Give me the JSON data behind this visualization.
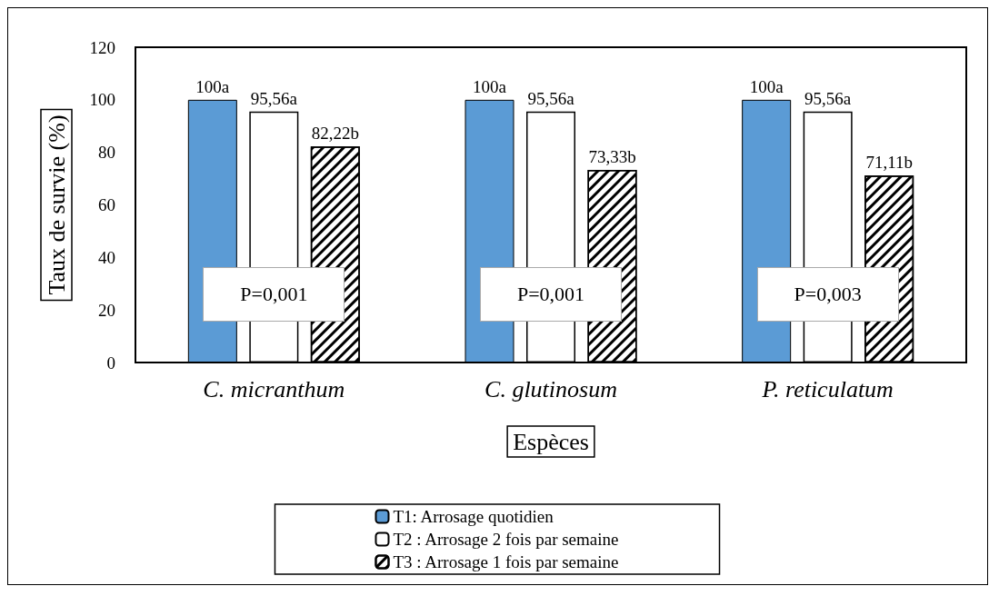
{
  "chart_data": {
    "type": "bar",
    "categories": [
      "C. micranthum",
      "C. glutinosum",
      "P. reticulatum"
    ],
    "series": [
      {
        "name": "T1: Arrosage quotidien",
        "color": "#5b9bd5",
        "values": [
          100,
          100,
          100
        ],
        "value_labels": [
          "100a",
          "100a",
          "100a"
        ]
      },
      {
        "name": "T2 : Arrosage 2 fois par semaine",
        "color": "#ffffff",
        "values": [
          95.56,
          95.56,
          95.56
        ],
        "value_labels": [
          "95,56a",
          "95,56a",
          "95,56a"
        ]
      },
      {
        "name": "T3 : Arrosage 1 fois par semaine",
        "color": "#000000",
        "values": [
          82.22,
          73.33,
          71.11
        ],
        "value_labels": [
          "82,22b",
          "73,33b",
          "71,11b"
        ]
      }
    ],
    "xlabel": "Espèces",
    "ylabel": "Taux de survie (%)",
    "ylim": [
      0,
      120
    ],
    "yticks": [
      0,
      20,
      40,
      60,
      80,
      100,
      120
    ],
    "annotations": [
      "P=0,001",
      "P=0,001",
      "P=0,003"
    ],
    "grid": false,
    "legend": "bottom"
  }
}
